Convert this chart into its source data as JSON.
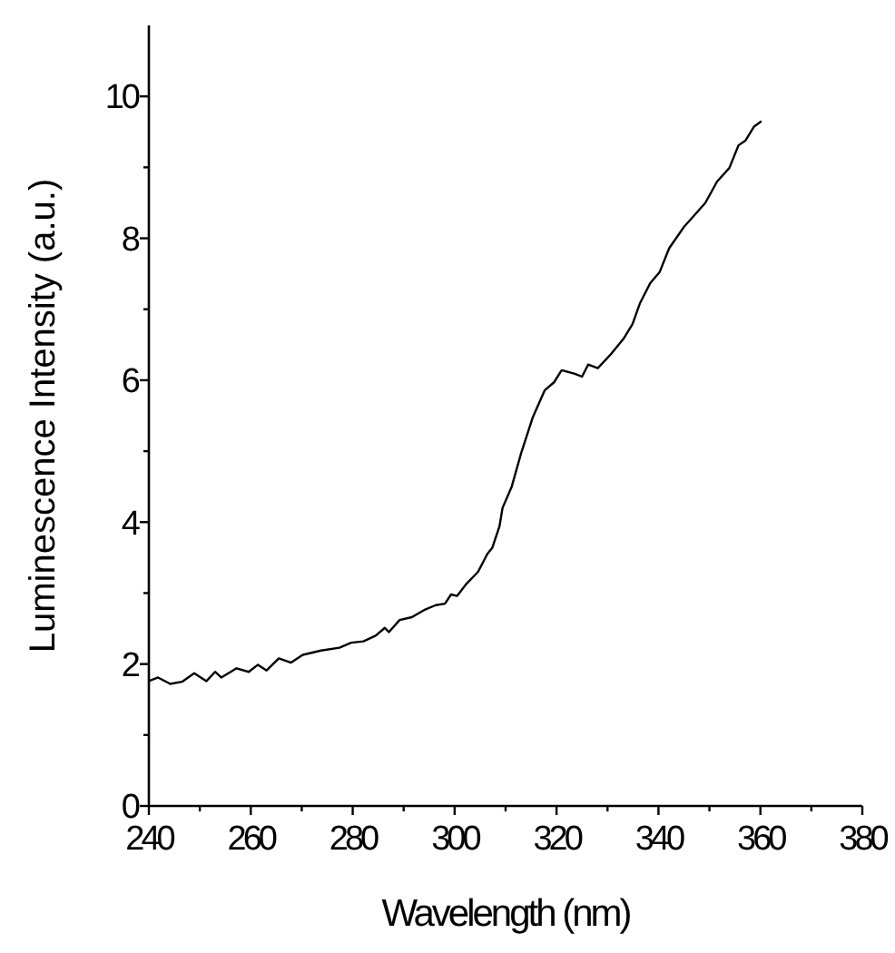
{
  "chart_data": {
    "type": "line",
    "xlabel": "Wavelength (nm)",
    "ylabel": "Luminescence Intensity (a.u.)",
    "xlim": [
      240,
      380
    ],
    "ylim": [
      0,
      11
    ],
    "xticks": [
      240,
      {
        "value": 250,
        "label": null
      },
      260,
      {
        "value": 270,
        "label": null
      },
      280,
      {
        "value": 290,
        "label": null
      },
      300,
      {
        "value": 310,
        "label": null
      },
      320,
      {
        "value": 330,
        "label": null
      },
      340,
      {
        "value": 350,
        "label": null
      },
      360,
      {
        "value": 370,
        "label": null
      },
      380
    ],
    "yticks": [
      0,
      {
        "value": 1,
        "label": null
      },
      2,
      {
        "value": 3,
        "label": null
      },
      4,
      {
        "value": 5,
        "label": null
      },
      6,
      {
        "value": 7,
        "label": null
      },
      8,
      {
        "value": 9,
        "label": null
      },
      10
    ],
    "grid": false,
    "marker": "none",
    "line_style": "solid",
    "series": [
      {
        "color": "#000000",
        "x": [
          240,
          241.8,
          244.2,
          246.5,
          248.9,
          251.3,
          253,
          254.2,
          257.2,
          259.6,
          261.4,
          263.1,
          265.5,
          267.9,
          270.2,
          273.8,
          277.4,
          279.7,
          282.1,
          284.5,
          286.3,
          287.1,
          289.2,
          291.6,
          294,
          296.3,
          298.1,
          299.3,
          300.5,
          302.3,
          304.6,
          306.4,
          307.4,
          308.8,
          309.4,
          311.2,
          313,
          315.3,
          317.7,
          319.5,
          321,
          323.6,
          325,
          326.2,
          328.1,
          330.7,
          333.1,
          334.9,
          336.4,
          338.4,
          340.2,
          342.1,
          345,
          349.2,
          351.5,
          353.9,
          355.7,
          357.1,
          358.7,
          360.2
        ],
        "values": [
          1.76,
          1.81,
          1.72,
          1.75,
          1.87,
          1.76,
          1.89,
          1.81,
          1.94,
          1.89,
          1.99,
          1.91,
          2.08,
          2.02,
          2.13,
          2.19,
          2.23,
          2.3,
          2.32,
          2.4,
          2.51,
          2.45,
          2.62,
          2.66,
          2.76,
          2.83,
          2.85,
          2.98,
          2.96,
          3.13,
          3.3,
          3.55,
          3.64,
          3.94,
          4.2,
          4.5,
          4.96,
          5.47,
          5.86,
          5.97,
          6.14,
          6.09,
          6.05,
          6.22,
          6.17,
          6.37,
          6.58,
          6.79,
          7.09,
          7.37,
          7.52,
          7.86,
          8.16,
          8.5,
          8.8,
          8.99,
          9.31,
          9.38,
          9.57,
          9.65
        ]
      }
    ]
  }
}
